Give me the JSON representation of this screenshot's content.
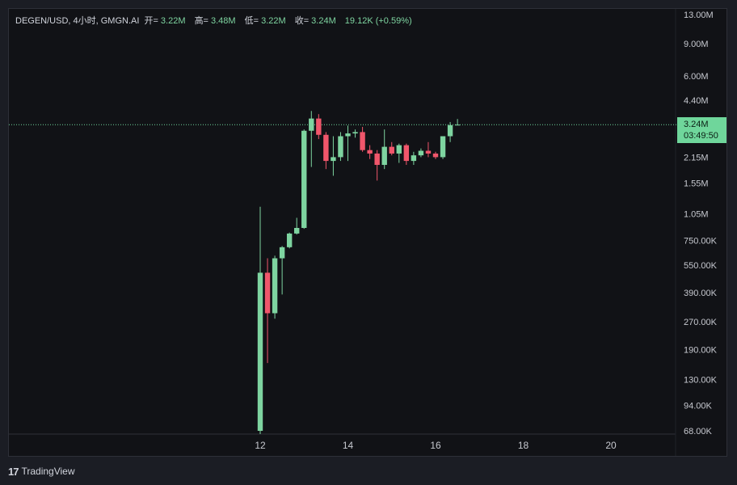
{
  "header": {
    "symbol": "DEGEN/USD, 4小时, GMGN.AI",
    "open_label": "开=",
    "open": "3.22M",
    "high_label": "高=",
    "high": "3.48M",
    "low_label": "低=",
    "low": "3.22M",
    "close_label": "收=",
    "close": "3.24M",
    "change": "19.12K (+0.59%)"
  },
  "price_tag": {
    "price": "3.24M",
    "countdown": "03:49:50"
  },
  "footer": {
    "brand": "TradingView"
  },
  "colors": {
    "up": "#7ed4a0",
    "down": "#f0566b",
    "background": "#111216",
    "price_line": "#6fd69b"
  },
  "chart_data": {
    "type": "candlestick",
    "y_scale": "log",
    "ylim": [
      68000,
      13000000
    ],
    "y_ticks": [
      {
        "label": "13.00M",
        "value": 13000000
      },
      {
        "label": "9.00M",
        "value": 9000000
      },
      {
        "label": "6.00M",
        "value": 6000000
      },
      {
        "label": "4.40M",
        "value": 4400000
      },
      {
        "label": "3.24M",
        "value": 3240000,
        "hidden": true
      },
      {
        "label": "2.15M",
        "value": 2150000
      },
      {
        "label": "1.55M",
        "value": 1550000
      },
      {
        "label": "1.05M",
        "value": 1050000
      },
      {
        "label": "750.00K",
        "value": 750000
      },
      {
        "label": "550.00K",
        "value": 550000
      },
      {
        "label": "390.00K",
        "value": 390000
      },
      {
        "label": "270.00K",
        "value": 270000
      },
      {
        "label": "190.00K",
        "value": 190000
      },
      {
        "label": "130.00K",
        "value": 130000
      },
      {
        "label": "94.00K",
        "value": 94000
      },
      {
        "label": "68.00K",
        "value": 68000
      }
    ],
    "x_ticks": [
      "12",
      "14",
      "16",
      "18",
      "20"
    ],
    "last_price": 3240000,
    "candles": [
      {
        "o": 68000,
        "h": 1150000,
        "l": 60000,
        "c": 500000
      },
      {
        "o": 500000,
        "h": 600000,
        "l": 160000,
        "c": 300000
      },
      {
        "o": 300000,
        "h": 620000,
        "l": 280000,
        "c": 600000
      },
      {
        "o": 600000,
        "h": 700000,
        "l": 380000,
        "c": 690000
      },
      {
        "o": 690000,
        "h": 830000,
        "l": 680000,
        "c": 820000
      },
      {
        "o": 820000,
        "h": 1000000,
        "l": 810000,
        "c": 880000
      },
      {
        "o": 880000,
        "h": 3050000,
        "l": 870000,
        "c": 3000000
      },
      {
        "o": 3000000,
        "h": 3850000,
        "l": 1900000,
        "c": 3500000
      },
      {
        "o": 3500000,
        "h": 3700000,
        "l": 2700000,
        "c": 2850000
      },
      {
        "o": 2850000,
        "h": 2950000,
        "l": 1850000,
        "c": 2050000
      },
      {
        "o": 2050000,
        "h": 2800000,
        "l": 1700000,
        "c": 2150000
      },
      {
        "o": 2150000,
        "h": 2950000,
        "l": 2050000,
        "c": 2800000
      },
      {
        "o": 2800000,
        "h": 3200000,
        "l": 2050000,
        "c": 2900000
      },
      {
        "o": 2900000,
        "h": 3050000,
        "l": 2750000,
        "c": 2950000
      },
      {
        "o": 2950000,
        "h": 3150000,
        "l": 2300000,
        "c": 2350000
      },
      {
        "o": 2350000,
        "h": 2500000,
        "l": 2100000,
        "c": 2250000
      },
      {
        "o": 2250000,
        "h": 2350000,
        "l": 1600000,
        "c": 1950000
      },
      {
        "o": 1950000,
        "h": 3050000,
        "l": 1850000,
        "c": 2450000
      },
      {
        "o": 2450000,
        "h": 2600000,
        "l": 2200000,
        "c": 2250000
      },
      {
        "o": 2250000,
        "h": 2550000,
        "l": 2000000,
        "c": 2500000
      },
      {
        "o": 2500000,
        "h": 2550000,
        "l": 1950000,
        "c": 2050000
      },
      {
        "o": 2050000,
        "h": 2300000,
        "l": 1950000,
        "c": 2200000
      },
      {
        "o": 2200000,
        "h": 2400000,
        "l": 2150000,
        "c": 2330000
      },
      {
        "o": 2330000,
        "h": 2600000,
        "l": 2150000,
        "c": 2250000
      },
      {
        "o": 2250000,
        "h": 2300000,
        "l": 2100000,
        "c": 2150000
      },
      {
        "o": 2150000,
        "h": 2800000,
        "l": 2100000,
        "c": 2800000
      },
      {
        "o": 2800000,
        "h": 3350000,
        "l": 2600000,
        "c": 3220000
      },
      {
        "o": 3220000,
        "h": 3480000,
        "l": 3220000,
        "c": 3240000
      }
    ]
  }
}
